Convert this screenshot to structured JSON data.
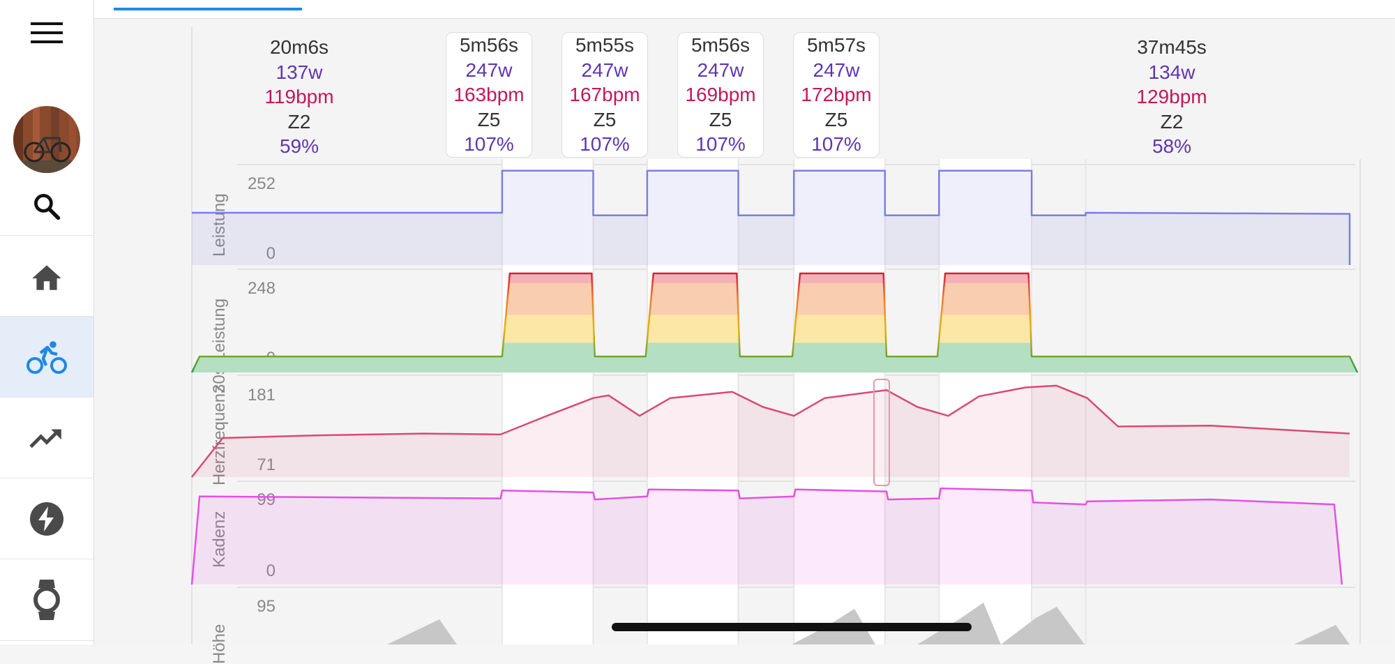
{
  "sidebar": {
    "items": [
      {
        "name": "home",
        "icon": "home-icon"
      },
      {
        "name": "activities",
        "icon": "bike-icon",
        "active": true
      },
      {
        "name": "fitness",
        "icon": "trending-up-icon"
      },
      {
        "name": "power",
        "icon": "bolt-icon"
      },
      {
        "name": "devices",
        "icon": "watch-icon"
      }
    ]
  },
  "intervals": [
    {
      "duration": "20m6s",
      "power": "137w",
      "hr": "119bpm",
      "zone": "Z2",
      "pct": "59%"
    },
    {
      "duration": "5m56s",
      "power": "247w",
      "hr": "163bpm",
      "zone": "Z5",
      "pct": "107%"
    },
    {
      "duration": "5m55s",
      "power": "247w",
      "hr": "167bpm",
      "zone": "Z5",
      "pct": "107%"
    },
    {
      "duration": "5m56s",
      "power": "247w",
      "hr": "169bpm",
      "zone": "Z5",
      "pct": "107%"
    },
    {
      "duration": "5m57s",
      "power": "247w",
      "hr": "172bpm",
      "zone": "Z5",
      "pct": "107%"
    },
    {
      "duration": "37m45s",
      "power": "134w",
      "hr": "129bpm",
      "zone": "Z2",
      "pct": "58%"
    }
  ],
  "panels": [
    {
      "label": "Leistung",
      "max": "252",
      "min": "0"
    },
    {
      "label": "30s Leistung",
      "max": "248",
      "min": "0"
    },
    {
      "label": "Herzfrequenz",
      "max": "181",
      "min": "71"
    },
    {
      "label": "Kadenz",
      "max": "99",
      "min": "0"
    },
    {
      "label": "Höhe",
      "max": "95",
      "min": ""
    }
  ],
  "colors": {
    "power": "#7b7fe0",
    "hr": "#d94a72",
    "cadence": "#e64fe6",
    "altitude": "#c7c7c7",
    "accent": "#1e88e5",
    "purple": "#5e35b1",
    "crimson": "#c2185b"
  },
  "chart_data": {
    "type": "line",
    "x_range": [
      0,
      75
    ],
    "series": [
      {
        "name": "Leistung",
        "ylim": [
          0,
          252
        ],
        "x": [
          0,
          20.1,
          20.1,
          26.0,
          26.0,
          29.5,
          29.5,
          35.4,
          35.4,
          39.0,
          39.0,
          44.9,
          44.9,
          48.4,
          48.4,
          54.4,
          54.4,
          57.9,
          57.9,
          75,
          75
        ],
        "values": [
          137,
          137,
          247,
          247,
          130,
          130,
          247,
          247,
          130,
          130,
          247,
          247,
          130,
          130,
          247,
          247,
          130,
          130,
          137,
          134,
          0
        ]
      },
      {
        "name": "30s Leistung",
        "ylim": [
          0,
          248
        ],
        "x": [
          0,
          0.5,
          20.1,
          20.6,
          25.9,
          26.1,
          29.4,
          29.9,
          35.3,
          35.5,
          38.9,
          39.4,
          44.8,
          45,
          48.3,
          48.8,
          54.2,
          54.4,
          57.9,
          58,
          75,
          75.5
        ],
        "values": [
          0,
          40,
          40,
          248,
          248,
          40,
          40,
          248,
          248,
          40,
          40,
          248,
          248,
          40,
          40,
          248,
          248,
          40,
          40,
          40,
          40,
          0
        ]
      },
      {
        "name": "Herzfrequenz",
        "ylim": [
          71,
          181
        ],
        "x": [
          0,
          2,
          8,
          15,
          20,
          23,
          26,
          27,
          29,
          31,
          35,
          37,
          39,
          41,
          45,
          47,
          49,
          51,
          54,
          56,
          58,
          60,
          66,
          75
        ],
        "values": [
          71,
          115,
          118,
          120,
          119,
          140,
          160,
          163,
          140,
          160,
          167,
          150,
          140,
          160,
          169,
          150,
          140,
          162,
          172,
          174,
          160,
          128,
          129,
          120
        ]
      },
      {
        "name": "Kadenz",
        "ylim": [
          0,
          99
        ],
        "x": [
          0,
          0.5,
          20,
          20.1,
          26,
          26.1,
          29.5,
          29.6,
          35.4,
          35.5,
          39,
          39.1,
          45,
          45.1,
          48.4,
          48.5,
          54.4,
          54.5,
          57.9,
          58,
          66,
          74,
          74.5
        ],
        "values": [
          0,
          88,
          86,
          94,
          92,
          85,
          88,
          95,
          94,
          86,
          88,
          95,
          93,
          85,
          86,
          96,
          94,
          82,
          80,
          83,
          85,
          80,
          0
        ]
      }
    ]
  }
}
